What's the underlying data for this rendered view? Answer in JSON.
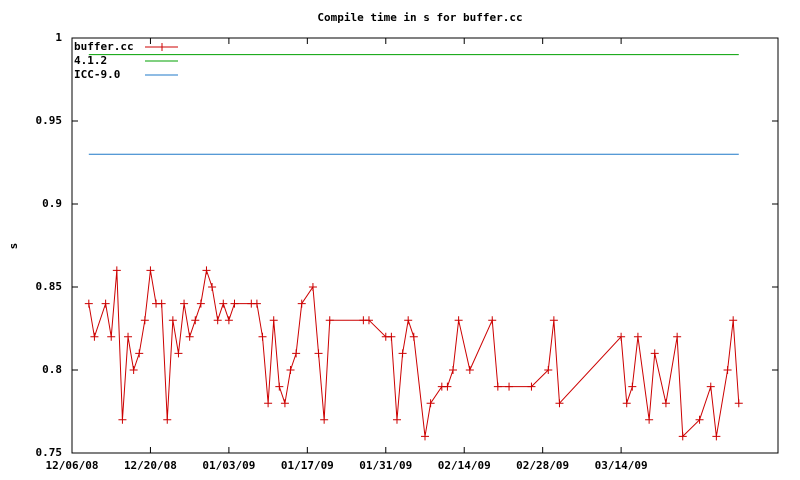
{
  "chart_data": {
    "type": "line",
    "title": "Compile time in s for buffer.cc",
    "y_label": "s",
    "legend": "top left",
    "grid": false,
    "xlim": [
      "2008-12-06",
      "2009-04-11"
    ],
    "xticks": [
      {
        "value": "2008-12-06",
        "label": "12/06/08"
      },
      {
        "value": "2008-12-20",
        "label": "12/20/08"
      },
      {
        "value": "2009-01-03",
        "label": "01/03/09"
      },
      {
        "value": "2009-01-17",
        "label": "01/17/09"
      },
      {
        "value": "2009-01-31",
        "label": "01/31/09"
      },
      {
        "value": "2009-02-14",
        "label": "02/14/09"
      },
      {
        "value": "2009-02-28",
        "label": "02/28/09"
      },
      {
        "value": "2009-03-14",
        "label": "03/14/09"
      }
    ],
    "ylim": [
      0.75,
      1
    ],
    "yticks": [
      0.75,
      0.8,
      0.85,
      0.9,
      0.95,
      1
    ],
    "series": [
      {
        "name": "buffer.cc",
        "color": "#cc0000",
        "marker": "+",
        "x": [
          "2008-12-09",
          "2008-12-10",
          "2008-12-12",
          "2008-12-13",
          "2008-12-14",
          "2008-12-15",
          "2008-12-16",
          "2008-12-17",
          "2008-12-18",
          "2008-12-19",
          "2008-12-20",
          "2008-12-21",
          "2008-12-22",
          "2008-12-23",
          "2008-12-24",
          "2008-12-25",
          "2008-12-26",
          "2008-12-27",
          "2008-12-28",
          "2008-12-29",
          "2008-12-30",
          "2008-12-31",
          "2009-01-01",
          "2009-01-02",
          "2009-01-03",
          "2009-01-04",
          "2009-01-07",
          "2009-01-08",
          "2009-01-09",
          "2009-01-10",
          "2009-01-11",
          "2009-01-12",
          "2009-01-13",
          "2009-01-14",
          "2009-01-15",
          "2009-01-16",
          "2009-01-18",
          "2009-01-19",
          "2009-01-20",
          "2009-01-21",
          "2009-01-27",
          "2009-01-28",
          "2009-01-31",
          "2009-02-01",
          "2009-02-02",
          "2009-02-03",
          "2009-02-04",
          "2009-02-05",
          "2009-02-07",
          "2009-02-08",
          "2009-02-10",
          "2009-02-11",
          "2009-02-12",
          "2009-02-13",
          "2009-02-15",
          "2009-02-19",
          "2009-02-20",
          "2009-02-22",
          "2009-02-26",
          "2009-03-01",
          "2009-03-02",
          "2009-03-03",
          "2009-03-14",
          "2009-03-15",
          "2009-03-16",
          "2009-03-17",
          "2009-03-19",
          "2009-03-20",
          "2009-03-22",
          "2009-03-24",
          "2009-03-25",
          "2009-03-28",
          "2009-03-30",
          "2009-03-31",
          "2009-04-02",
          "2009-04-03",
          "2009-04-04"
        ],
        "values": [
          0.84,
          0.82,
          0.84,
          0.82,
          0.86,
          0.77,
          0.82,
          0.8,
          0.81,
          0.83,
          0.86,
          0.84,
          0.84,
          0.77,
          0.83,
          0.81,
          0.84,
          0.82,
          0.83,
          0.84,
          0.86,
          0.85,
          0.83,
          0.84,
          0.83,
          0.84,
          0.84,
          0.84,
          0.82,
          0.78,
          0.83,
          0.79,
          0.78,
          0.8,
          0.81,
          0.84,
          0.85,
          0.81,
          0.77,
          0.83,
          0.83,
          0.83,
          0.82,
          0.82,
          0.77,
          0.81,
          0.83,
          0.82,
          0.76,
          0.78,
          0.79,
          0.79,
          0.8,
          0.83,
          0.8,
          0.83,
          0.79,
          0.79,
          0.79,
          0.8,
          0.83,
          0.78,
          0.82,
          0.78,
          0.79,
          0.82,
          0.77,
          0.81,
          0.78,
          0.82,
          0.76,
          0.77,
          0.79,
          0.76,
          0.8,
          0.83,
          0.78
        ]
      },
      {
        "name": "4.1.2",
        "color": "#00a000",
        "x": [
          "2008-12-09",
          "2009-04-04"
        ],
        "values": [
          0.99,
          0.99
        ]
      },
      {
        "name": "ICC-9.0",
        "color": "#1f78c8",
        "x": [
          "2008-12-09",
          "2009-04-04"
        ],
        "values": [
          0.93,
          0.93
        ]
      }
    ]
  }
}
